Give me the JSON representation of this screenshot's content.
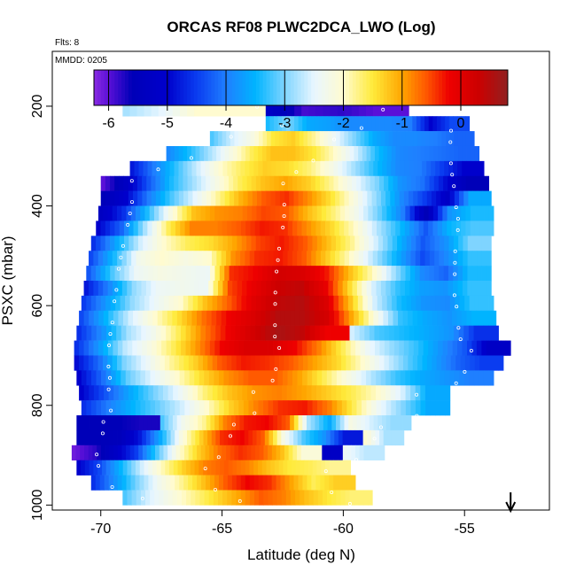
{
  "chart_data": {
    "type": "heatmap",
    "title": "ORCAS RF08 PLWC2DCA_LWO (Log)",
    "subtitle_flts": "Flts: 8",
    "subtitle_mmdd": "MMDD: 0205",
    "xlabel": "Latitude (deg N)",
    "ylabel": "PSXC (mbar)",
    "xlim": [
      -72,
      -51.5
    ],
    "ylim": [
      1010,
      90
    ],
    "xticks": [
      -70,
      -65,
      -60,
      -55
    ],
    "yticks": [
      200,
      400,
      600,
      800,
      1000
    ],
    "colorbar": {
      "range": [
        -6.25,
        0.8
      ],
      "ticks": [
        -6,
        -5,
        -4,
        -3,
        -2,
        -1,
        0
      ],
      "stops": [
        {
          "v": -6.25,
          "c": "#8a2be2"
        },
        {
          "v": -6.0,
          "c": "#5a10d8"
        },
        {
          "v": -5.6,
          "c": "#0000b8"
        },
        {
          "v": -5.0,
          "c": "#0000cc"
        },
        {
          "v": -4.5,
          "c": "#0a3cf0"
        },
        {
          "v": -4.0,
          "c": "#1f7fff"
        },
        {
          "v": -3.5,
          "c": "#00b4ff"
        },
        {
          "v": -3.0,
          "c": "#7fd4ff"
        },
        {
          "v": -2.5,
          "c": "#e8f6ff"
        },
        {
          "v": -2.0,
          "c": "#fffbd0"
        },
        {
          "v": -1.5,
          "c": "#ffea3a"
        },
        {
          "v": -1.0,
          "c": "#ffa500"
        },
        {
          "v": -0.6,
          "c": "#ff5a00"
        },
        {
          "v": -0.2,
          "c": "#ee0000"
        },
        {
          "v": 0.3,
          "c": "#cc0000"
        },
        {
          "v": 0.8,
          "c": "#902020"
        }
      ]
    },
    "altitude_bins": [
      {
        "p": 205,
        "lat": [
          -69.1,
          -57.3
        ],
        "v": [
          -2.8,
          -2.5,
          -2.0,
          -2.0,
          -5.2,
          -5.9,
          -5.8,
          -6.0
        ]
      },
      {
        "p": 235,
        "lat": [
          -63.2,
          -54.8
        ],
        "v": [
          -3.4,
          -3.0,
          -3.6,
          -3.7,
          -3.9,
          -3.9,
          -3.9,
          -4.0,
          -5.0,
          -4.4
        ]
      },
      {
        "p": 265,
        "lat": [
          -65.5,
          -54.6
        ],
        "v": [
          -3.2,
          -2.6,
          -2.2,
          -1.5,
          -1.3,
          -1.8,
          -2.4,
          -3.0,
          -3.6,
          -3.9,
          -3.9,
          -4.0,
          -4.2
        ]
      },
      {
        "p": 295,
        "lat": [
          -67.3,
          -54.4
        ],
        "v": [
          -3.9,
          -3.4,
          -2.8,
          -2.2,
          -1.6,
          -1.2,
          -1.2,
          -1.5,
          -2.0,
          -2.6,
          -3.4,
          -3.9,
          -4.0,
          -4.1,
          -4.2
        ]
      },
      {
        "p": 325,
        "lat": [
          -68.8,
          -54.2
        ],
        "v": [
          -4.8,
          -4.0,
          -3.3,
          -2.6,
          -2.0,
          -1.6,
          -1.3,
          -1.4,
          -1.7,
          -2.2,
          -2.8,
          -3.4,
          -3.9,
          -4.0,
          -4.5,
          -5.0
        ]
      },
      {
        "p": 355,
        "lat": [
          -70.0,
          -54.0
        ],
        "v": [
          -6.0,
          -5.3,
          -4.3,
          -3.4,
          -2.8,
          -2.2,
          -1.6,
          -1.2,
          -1.0,
          -1.3,
          -1.8,
          -2.4,
          -3.0,
          -3.8,
          -4.1,
          -4.9,
          -5.6
        ]
      },
      {
        "p": 385,
        "lat": [
          -70.0,
          -53.9
        ],
        "v": [
          -5.6,
          -5.0,
          -4.0,
          -3.2,
          -2.5,
          -1.8,
          -1.1,
          -0.6,
          -0.4,
          -0.9,
          -1.5,
          -2.2,
          -3.0,
          -3.9,
          -4.5,
          -5.2,
          -3.6
        ]
      },
      {
        "p": 415,
        "lat": [
          -70.1,
          -53.8
        ],
        "v": [
          -5.3,
          -4.6,
          -3.4,
          -2.2,
          -1.2,
          -0.9,
          -0.8,
          -0.5,
          -0.6,
          -1.2,
          -1.7,
          -2.3,
          -3.1,
          -4.0,
          -5.6,
          -3.8,
          -3.4
        ]
      },
      {
        "p": 445,
        "lat": [
          -70.2,
          -53.8
        ],
        "v": [
          -5.0,
          -4.2,
          -2.8,
          -1.6,
          -0.8,
          -0.8,
          -0.6,
          -0.3,
          -0.4,
          -0.9,
          -1.4,
          -2.0,
          -2.8,
          -3.5,
          -4.3,
          -3.5,
          -3.2
        ]
      },
      {
        "p": 475,
        "lat": [
          -70.4,
          -53.9
        ],
        "v": [
          -4.6,
          -3.6,
          -2.6,
          -2.0,
          -1.6,
          -1.4,
          -1.0,
          -0.5,
          -0.3,
          -0.6,
          -1.2,
          -1.8,
          -2.6,
          -3.5,
          -4.3,
          -3.8,
          -3.0
        ]
      },
      {
        "p": 505,
        "lat": [
          -70.5,
          -53.9
        ],
        "v": [
          -4.4,
          -3.4,
          -2.3,
          -2.0,
          -2.2,
          -2.0,
          -0.9,
          -0.4,
          -0.3,
          -0.6,
          -1.3,
          -2.0,
          -2.8,
          -3.6,
          -4.4,
          -3.9,
          -3.3
        ]
      },
      {
        "p": 535,
        "lat": [
          -70.6,
          -53.9
        ],
        "v": [
          -4.3,
          -3.2,
          -2.4,
          -2.2,
          -2.3,
          -2.4,
          -0.4,
          -0.2,
          0.2,
          0.1,
          -0.3,
          -1.2,
          -2.0,
          -3.0,
          -3.9,
          -4.2,
          -3.4
        ]
      },
      {
        "p": 565,
        "lat": [
          -70.7,
          -53.9
        ],
        "v": [
          -4.8,
          -3.9,
          -2.9,
          -2.4,
          -2.3,
          -2.4,
          -0.5,
          -0.1,
          0.3,
          0.4,
          -0.1,
          -1.4,
          -2.6,
          -3.3,
          -3.7,
          -3.8,
          -3.3
        ]
      },
      {
        "p": 595,
        "lat": [
          -70.8,
          -53.8
        ],
        "v": [
          -4.5,
          -3.7,
          -2.9,
          -2.4,
          -2.0,
          -1.2,
          -0.6,
          0.0,
          0.4,
          0.5,
          0.1,
          -1.2,
          -2.6,
          -3.4,
          -3.8,
          -3.9,
          -3.3
        ]
      },
      {
        "p": 625,
        "lat": [
          -70.9,
          -53.7
        ],
        "v": [
          -4.4,
          -3.5,
          -2.6,
          -2.0,
          -1.4,
          -0.7,
          -0.2,
          0.1,
          0.5,
          0.5,
          0.2,
          -1.0,
          -2.2,
          -3.3,
          -3.6,
          -3.8,
          -3.5
        ]
      },
      {
        "p": 655,
        "lat": [
          -71.0,
          -53.6
        ],
        "v": [
          -4.6,
          -3.8,
          -2.8,
          -2.3,
          -1.6,
          -0.8,
          -0.2,
          0.2,
          0.6,
          0.4,
          -0.2,
          -2.6,
          -3.2,
          -3.4,
          -3.6,
          -3.8,
          -4.6
        ]
      },
      {
        "p": 685,
        "lat": [
          -71.1,
          -53.1
        ],
        "v": [
          -4.6,
          -3.7,
          -2.7,
          -2.2,
          -1.6,
          -0.9,
          -0.2,
          0.1,
          0.1,
          -0.2,
          -0.8,
          -1.6,
          -2.4,
          -2.9,
          -3.3,
          -3.8,
          -4.3,
          -5.2
        ]
      },
      {
        "p": 715,
        "lat": [
          -71.1,
          -53.4
        ],
        "v": [
          -4.9,
          -4.1,
          -3.0,
          -2.4,
          -1.8,
          -1.3,
          -0.6,
          -0.3,
          -0.4,
          -0.6,
          -1.0,
          -1.4,
          -2.0,
          -2.6,
          -3.2,
          -3.7,
          -4.2,
          -4.5
        ]
      },
      {
        "p": 745,
        "lat": [
          -71.0,
          -53.8
        ],
        "v": [
          -5.0,
          -4.1,
          -3.1,
          -2.5,
          -2.0,
          -1.4,
          -0.9,
          -0.6,
          -0.6,
          -1.0,
          -1.6,
          -2.2,
          -2.8,
          -3.3,
          -3.6,
          -3.8,
          -4.0
        ]
      },
      {
        "p": 775,
        "lat": [
          -70.9,
          -55.6
        ],
        "v": [
          -5.0,
          -4.3,
          -3.6,
          -3.0,
          -2.4,
          -1.7,
          -1.2,
          -0.9,
          -0.8,
          -1.0,
          -1.3,
          -1.6,
          -2.0,
          -2.6,
          -3.6
        ]
      },
      {
        "p": 805,
        "lat": [
          -70.8,
          -55.6
        ],
        "v": [
          -4.6,
          -4.0,
          -3.5,
          -3.1,
          -2.6,
          -2.0,
          -1.3,
          -0.8,
          -0.4,
          -0.3,
          -0.8,
          -1.6,
          -2.4,
          -3.0,
          -3.6
        ]
      },
      {
        "p": 835,
        "lat": [
          -71.0,
          -57.2
        ],
        "v": [
          -5.6,
          -5.6,
          -5.6,
          -5.7,
          -3.2,
          -2.3,
          -1.8,
          -0.8,
          -0.3,
          -0.2,
          -0.6,
          -2.8,
          -3.6,
          -2.2,
          -2.6,
          -2.9
        ]
      },
      {
        "p": 865,
        "lat": [
          -71.0,
          -57.5
        ],
        "v": [
          -5.6,
          -5.6,
          -5.5,
          -4.8,
          -3.6,
          -2.2,
          -1.3,
          -0.4,
          -0.2,
          -0.6,
          -2.2,
          -3.2,
          -3.8,
          -4.8,
          -2.0,
          -2.8
        ]
      },
      {
        "p": 895,
        "lat": [
          -71.2,
          -58.3
        ],
        "v": [
          -6.1,
          -5.8,
          -5.2,
          -4.5,
          -3.2,
          -2.1,
          -1.3,
          -0.7,
          -0.4,
          -0.6,
          -1.2,
          -2.1,
          -5.2,
          -2.4,
          -2.7
        ]
      },
      {
        "p": 925,
        "lat": [
          -71.0,
          -59.7
        ],
        "v": [
          -5.0,
          -4.4,
          -3.5,
          -2.6,
          -1.9,
          -1.3,
          -0.8,
          -0.6,
          -0.8,
          -1.2,
          -1.5,
          -1.6,
          -1.8
        ]
      },
      {
        "p": 955,
        "lat": [
          -70.4,
          -59.5
        ],
        "v": [
          -4.6,
          -3.8,
          -3.0,
          -2.3,
          -1.8,
          -1.2,
          -0.6,
          -0.2,
          -0.4,
          -1.0,
          -1.6,
          -1.3
        ]
      },
      {
        "p": 985,
        "lat": [
          -69.1,
          -58.8
        ],
        "v": [
          -3.2,
          -2.6,
          -2.2,
          -1.8,
          -1.4,
          -1.0,
          -0.6,
          -0.8,
          -1.2,
          -1.5,
          -1.7
        ]
      }
    ],
    "arrow_latitude": -53.1
  }
}
